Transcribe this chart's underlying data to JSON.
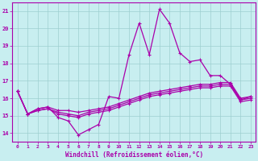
{
  "xlabel": "Windchill (Refroidissement éolien,°C)",
  "background_color": "#c8eef0",
  "grid_color": "#9dcfcf",
  "line_color": "#aa00aa",
  "x_hours": [
    0,
    1,
    2,
    3,
    4,
    5,
    6,
    7,
    8,
    9,
    10,
    11,
    12,
    13,
    14,
    15,
    16,
    17,
    18,
    19,
    20,
    21,
    22,
    23
  ],
  "series1": [
    16.4,
    15.1,
    15.4,
    15.5,
    14.9,
    14.7,
    13.9,
    14.2,
    14.5,
    16.1,
    16.0,
    18.5,
    20.3,
    18.5,
    21.1,
    20.3,
    18.6,
    18.1,
    18.2,
    17.3,
    17.3,
    16.8,
    15.9,
    16.1
  ],
  "series2": [
    16.4,
    15.1,
    15.4,
    15.5,
    15.3,
    15.3,
    15.2,
    15.3,
    15.4,
    15.5,
    15.7,
    15.9,
    16.1,
    16.3,
    16.4,
    16.5,
    16.6,
    16.7,
    16.8,
    16.8,
    16.9,
    16.9,
    16.0,
    16.1
  ],
  "series3": [
    16.4,
    15.1,
    15.3,
    15.4,
    15.2,
    15.1,
    15.0,
    15.2,
    15.3,
    15.4,
    15.6,
    15.8,
    16.0,
    16.2,
    16.3,
    16.4,
    16.5,
    16.6,
    16.7,
    16.7,
    16.8,
    16.8,
    15.9,
    16.0
  ],
  "series4": [
    16.4,
    15.1,
    15.3,
    15.4,
    15.1,
    15.0,
    14.9,
    15.1,
    15.2,
    15.3,
    15.5,
    15.7,
    15.9,
    16.1,
    16.2,
    16.3,
    16.4,
    16.5,
    16.6,
    16.6,
    16.7,
    16.7,
    15.8,
    15.9
  ],
  "ylim": [
    13.5,
    21.5
  ],
  "yticks": [
    14,
    15,
    16,
    17,
    18,
    19,
    20,
    21
  ],
  "xlim": [
    -0.5,
    23.5
  ]
}
